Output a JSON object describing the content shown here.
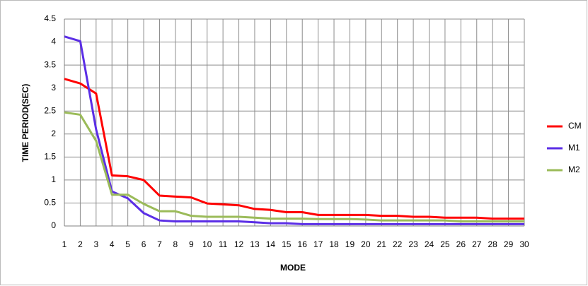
{
  "chart_data": {
    "type": "line",
    "x_label": "MODE",
    "y_label": "TIME PERIOD(SEC)",
    "x": [
      1,
      2,
      3,
      4,
      5,
      6,
      7,
      8,
      9,
      10,
      11,
      12,
      13,
      14,
      15,
      16,
      17,
      18,
      19,
      20,
      21,
      22,
      23,
      24,
      25,
      26,
      27,
      28,
      29,
      30
    ],
    "xlim": [
      1,
      30
    ],
    "xticks": [
      1,
      2,
      3,
      4,
      5,
      6,
      7,
      8,
      9,
      10,
      11,
      12,
      13,
      14,
      15,
      16,
      17,
      18,
      19,
      20,
      21,
      22,
      23,
      24,
      25,
      26,
      27,
      28,
      29,
      30
    ],
    "ylim": [
      0,
      4.5
    ],
    "yticks": [
      0,
      0.5,
      1,
      1.5,
      2,
      2.5,
      3,
      3.5,
      4,
      4.5
    ],
    "grid": true,
    "legend": "right",
    "series": [
      {
        "name": "CM",
        "color": "#ff0000",
        "values": [
          3.2,
          3.1,
          2.88,
          1.1,
          1.08,
          1.0,
          0.66,
          0.64,
          0.62,
          0.49,
          0.47,
          0.45,
          0.37,
          0.35,
          0.3,
          0.3,
          0.24,
          0.24,
          0.24,
          0.24,
          0.22,
          0.22,
          0.2,
          0.2,
          0.18,
          0.18,
          0.18,
          0.16,
          0.16,
          0.16
        ]
      },
      {
        "name": "M1",
        "color": "#5b2ee6",
        "values": [
          4.12,
          4.02,
          2.1,
          0.75,
          0.6,
          0.28,
          0.12,
          0.1,
          0.1,
          0.1,
          0.1,
          0.1,
          0.08,
          0.06,
          0.06,
          0.04,
          0.04,
          0.04,
          0.04,
          0.04,
          0.04,
          0.04,
          0.04,
          0.04,
          0.04,
          0.04,
          0.04,
          0.04,
          0.04,
          0.04
        ]
      },
      {
        "name": "M2",
        "color": "#9bbb59",
        "values": [
          2.47,
          2.42,
          1.85,
          0.68,
          0.68,
          0.48,
          0.32,
          0.32,
          0.22,
          0.2,
          0.2,
          0.2,
          0.18,
          0.16,
          0.16,
          0.16,
          0.15,
          0.15,
          0.15,
          0.14,
          0.12,
          0.12,
          0.12,
          0.12,
          0.12,
          0.1,
          0.1,
          0.1,
          0.1,
          0.1
        ]
      }
    ]
  }
}
